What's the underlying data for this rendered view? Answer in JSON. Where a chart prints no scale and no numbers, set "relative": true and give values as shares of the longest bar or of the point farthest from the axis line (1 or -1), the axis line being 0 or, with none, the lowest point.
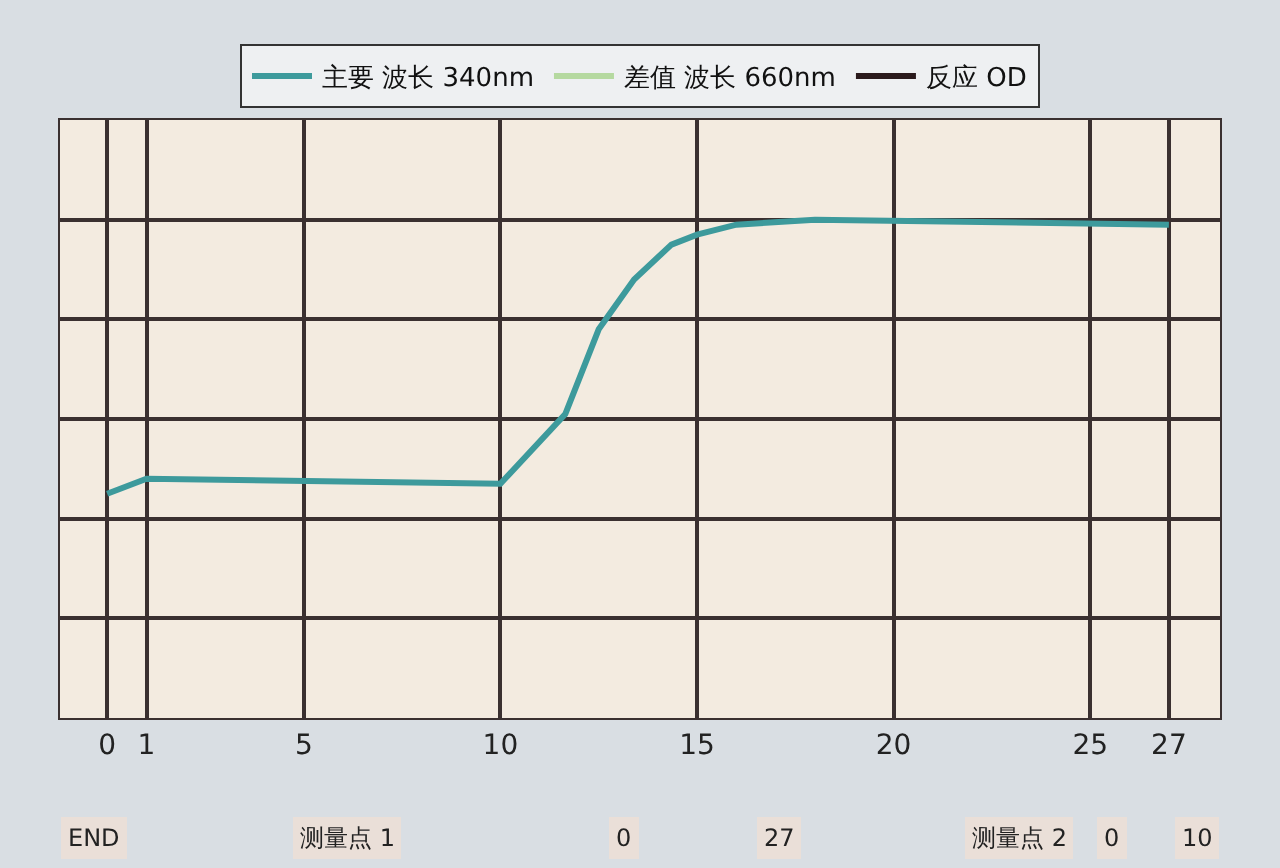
{
  "chart_data": {
    "type": "line",
    "relative": true,
    "x": [
      0,
      1,
      10,
      11.65,
      12.5,
      13.4,
      14.35,
      15,
      16,
      18,
      27
    ],
    "series": [
      {
        "name": "主要 波长 340nm",
        "color": "#3d9a9c",
        "values": [
          0.45,
          0.48,
          0.47,
          0.61,
          0.78,
          0.88,
          0.95,
          0.97,
          0.99,
          1,
          0.99
        ]
      },
      {
        "name": "差值 波长 660nm",
        "color": "#b5d9a0",
        "values": [
          null,
          null,
          null,
          null,
          null,
          null,
          null,
          null,
          null,
          null,
          null
        ]
      },
      {
        "name": "反应 OD",
        "color": "#2a1a1c",
        "values": [
          null,
          null,
          null,
          null,
          null,
          null,
          null,
          null,
          null,
          null,
          null
        ]
      }
    ],
    "xlim": [
      -1.2,
      28.3
    ],
    "xticks": [
      0,
      1,
      5,
      10,
      15,
      20,
      25,
      27
    ],
    "grid": true,
    "legend": "top",
    "marker": "none",
    "line_style": "solid",
    "annotations": [
      "END",
      "测量点 1",
      "0",
      "27",
      "测量点 2",
      "0",
      "10"
    ]
  }
}
